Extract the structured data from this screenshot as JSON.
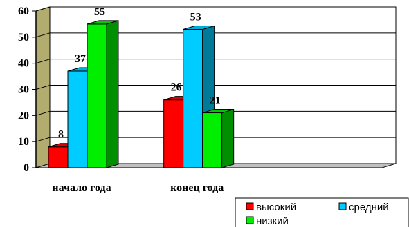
{
  "chart_data": {
    "type": "bar",
    "categories": [
      "начало года",
      "конец года",
      ""
    ],
    "series": [
      {
        "name": "высокий",
        "color": "#ff0000",
        "values": [
          8,
          26,
          null
        ]
      },
      {
        "name": "средний",
        "color": "#00ccff",
        "values": [
          37,
          53,
          null
        ]
      },
      {
        "name": "низкий",
        "color": "#00ee00",
        "values": [
          55,
          21,
          null
        ]
      }
    ],
    "y_ticks": [
      "0",
      "10",
      "20",
      "30",
      "40",
      "50",
      "60"
    ],
    "ylim": [
      0,
      60
    ],
    "grid": true,
    "three_d": true,
    "legend_position": "bottom-right",
    "data_labels": true
  }
}
